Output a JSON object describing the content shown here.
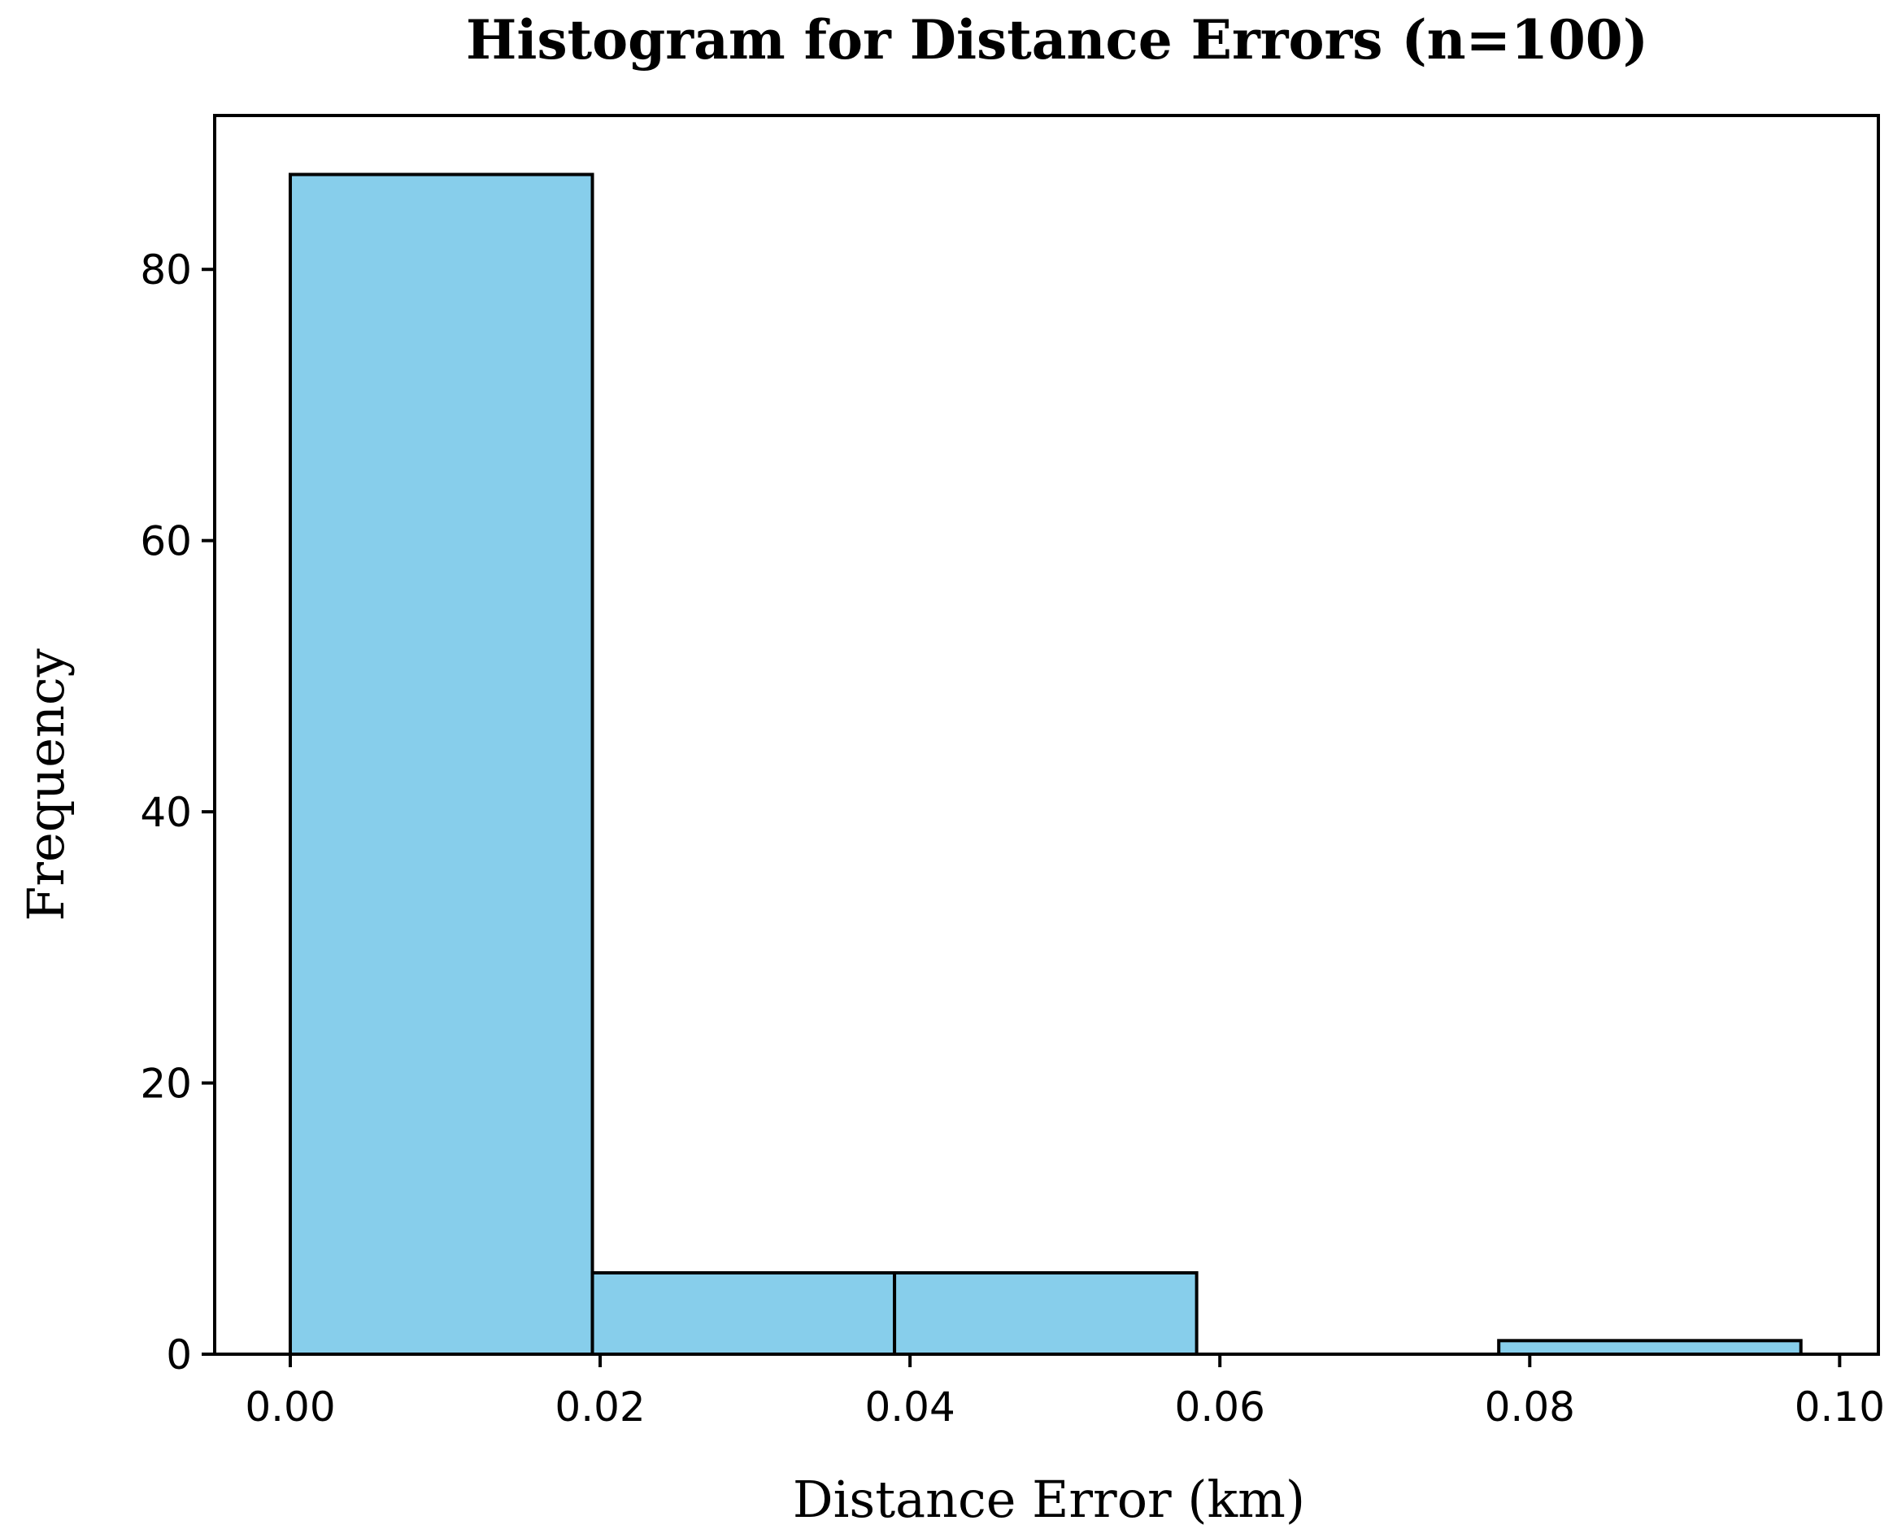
{
  "chart_data": {
    "type": "bar",
    "title": "Histogram for Distance Errors (n=100)",
    "xlabel": "Distance Error (km)",
    "ylabel": "Frequency",
    "xlim": [
      -0.00488,
      0.1025
    ],
    "ylim": [
      0,
      91.35
    ],
    "x_ticks": [
      "0.00",
      "0.02",
      "0.04",
      "0.06",
      "0.08",
      "0.10"
    ],
    "y_ticks": [
      "0",
      "20",
      "40",
      "60",
      "80"
    ],
    "bins": [
      {
        "start": 0.0,
        "end": 0.0195,
        "count": 87
      },
      {
        "start": 0.0195,
        "end": 0.039,
        "count": 6
      },
      {
        "start": 0.039,
        "end": 0.0585,
        "count": 6
      },
      {
        "start": 0.0585,
        "end": 0.078,
        "count": 0
      },
      {
        "start": 0.078,
        "end": 0.0975,
        "count": 1
      }
    ],
    "bar_color": "#87CEEB",
    "edge_color": "#000000",
    "grid": false
  }
}
